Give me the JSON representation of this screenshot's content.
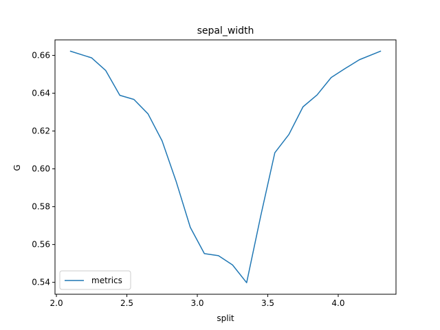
{
  "chart_data": {
    "type": "line",
    "title": "sepal_width",
    "xlabel": "split",
    "ylabel": "G",
    "xlim": [
      1.99,
      4.41
    ],
    "ylim": [
      0.5337,
      0.6682
    ],
    "xticks": [
      2.0,
      2.5,
      3.0,
      3.5,
      4.0
    ],
    "xtick_labels": [
      "2.0",
      "2.5",
      "3.0",
      "3.5",
      "4.0"
    ],
    "yticks": [
      0.54,
      0.56,
      0.58,
      0.6,
      0.62,
      0.64,
      0.66
    ],
    "ytick_labels": [
      "0.54",
      "0.56",
      "0.58",
      "0.60",
      "0.62",
      "0.64",
      "0.66"
    ],
    "grid": false,
    "legend_position": "lower-left",
    "series": [
      {
        "name": "metrics",
        "color": "#1f77b4",
        "x": [
          2.1,
          2.25,
          2.35,
          2.45,
          2.55,
          2.65,
          2.75,
          2.85,
          2.95,
          3.05,
          3.15,
          3.25,
          3.35,
          3.45,
          3.55,
          3.65,
          3.75,
          3.85,
          3.95,
          4.05,
          4.15,
          4.3
        ],
        "y": [
          0.6622,
          0.6587,
          0.652,
          0.6389,
          0.6367,
          0.6291,
          0.6148,
          0.5933,
          0.5691,
          0.5552,
          0.5541,
          0.5492,
          0.5398,
          0.5751,
          0.6085,
          0.6182,
          0.6328,
          0.6391,
          0.6483,
          0.6531,
          0.6577,
          0.6622
        ]
      }
    ]
  }
}
